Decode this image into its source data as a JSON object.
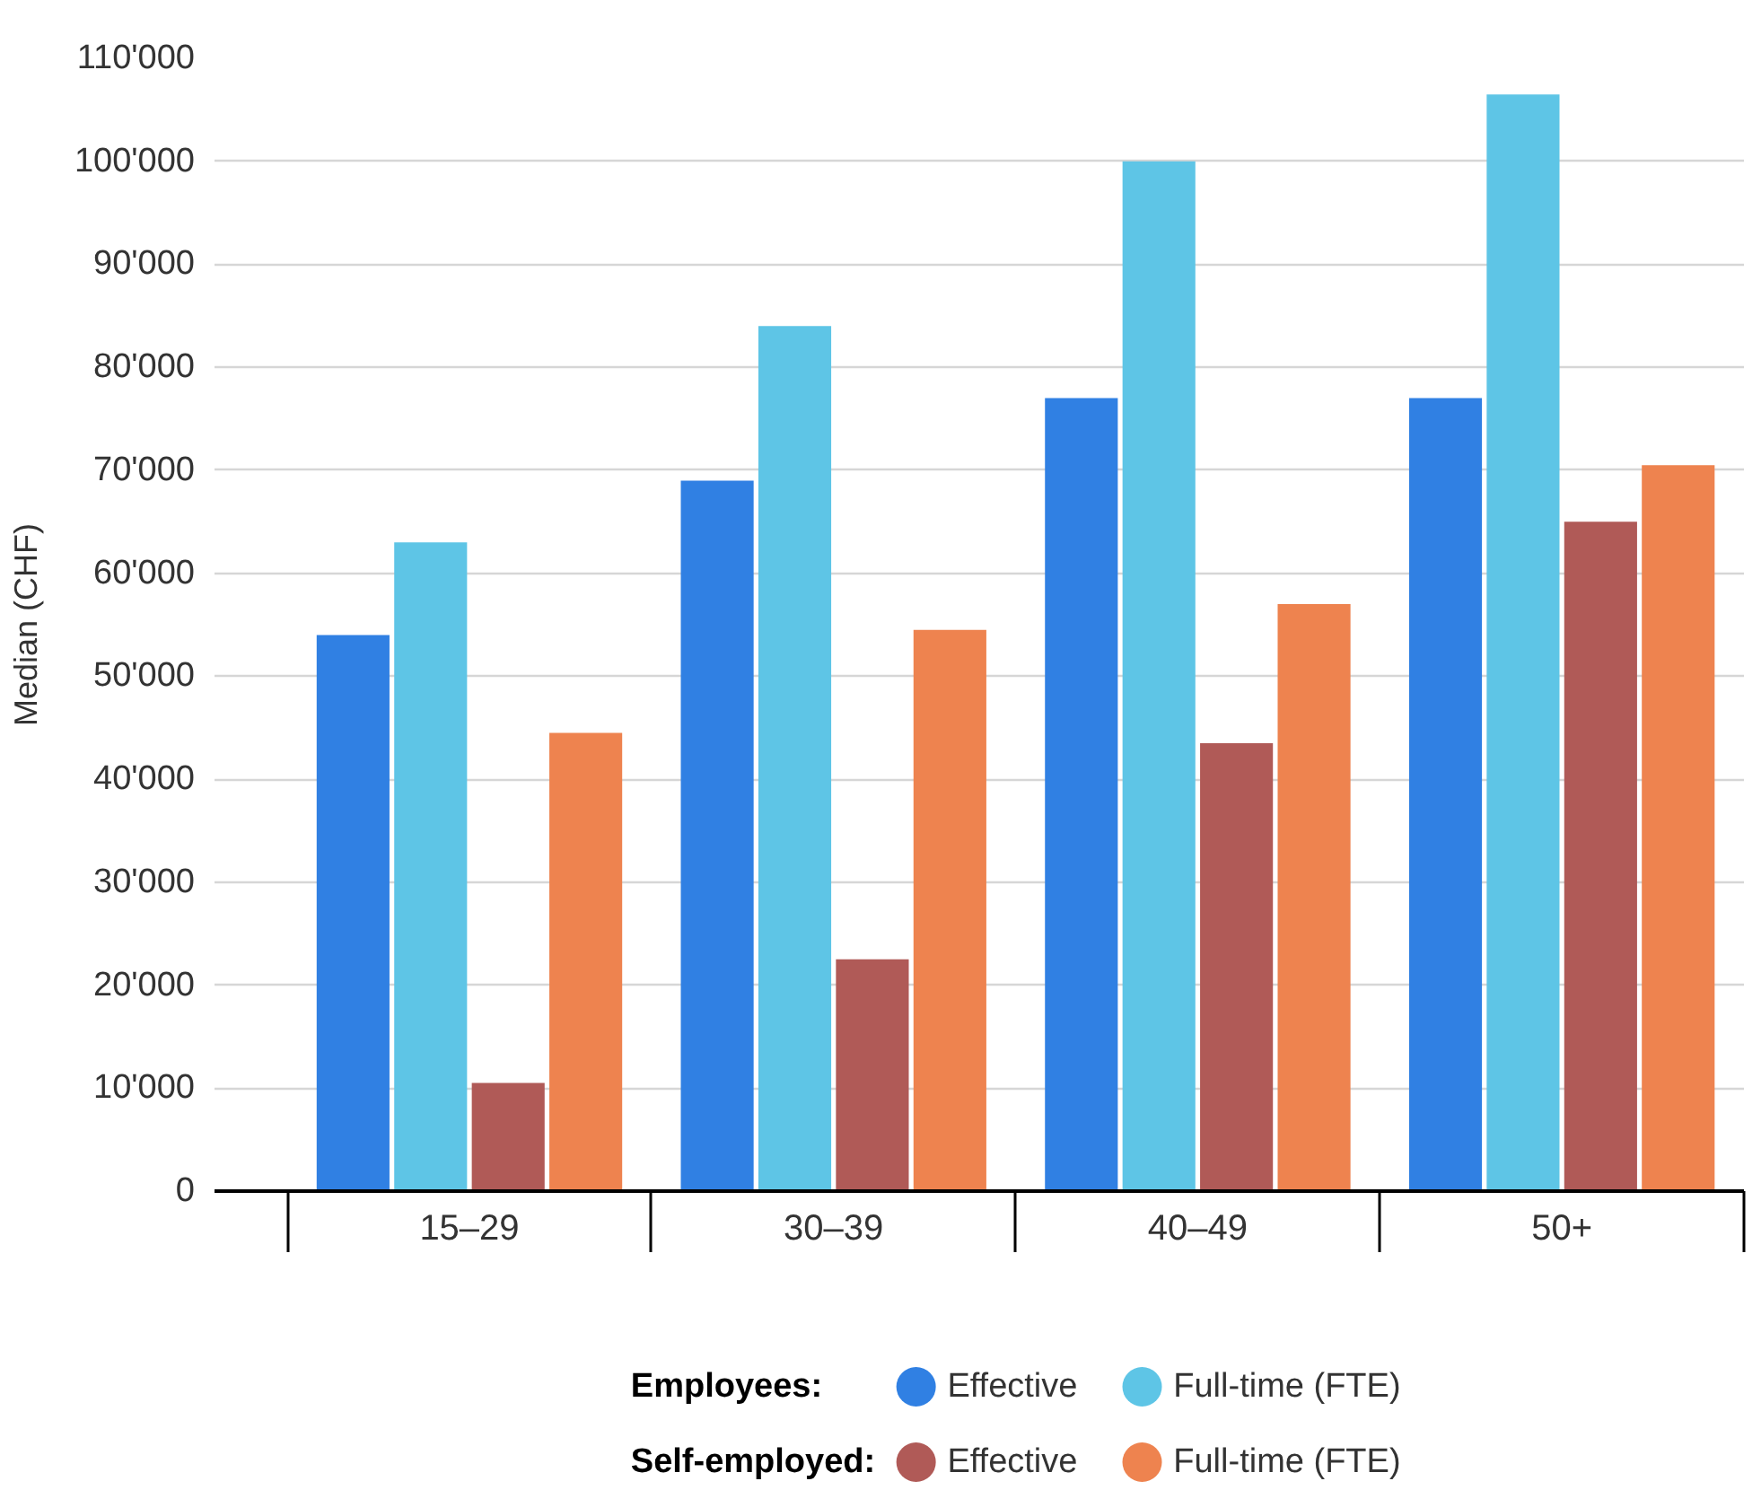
{
  "chart_data": {
    "type": "bar",
    "ylabel": "Median (CHF)",
    "categories": [
      "15–29",
      "30–39",
      "40–49",
      "50+"
    ],
    "series": [
      {
        "name": "Effective",
        "color": "#3080e3",
        "values": [
          54000,
          69000,
          77000,
          77000
        ]
      },
      {
        "name": "Full-time (FTE)",
        "color": "#5ec5e6",
        "values": [
          63000,
          84000,
          100000,
          106500
        ]
      },
      {
        "name": "Effective",
        "color": "#b05a57",
        "values": [
          10500,
          22500,
          43500,
          65000
        ]
      },
      {
        "name": "Full-time (FTE)",
        "color": "#ee834f",
        "values": [
          44500,
          54500,
          57000,
          70500
        ]
      }
    ],
    "annotations": [
      "Employees:",
      "Self-employed:"
    ],
    "ylim": [
      0,
      110000
    ],
    "yticks": [
      {
        "value": 0,
        "label": "0"
      },
      {
        "value": 10000,
        "label": "10'000"
      },
      {
        "value": 20000,
        "label": "20'000"
      },
      {
        "value": 30000,
        "label": "30'000"
      },
      {
        "value": 40000,
        "label": "40'000"
      },
      {
        "value": 50000,
        "label": "50'000"
      },
      {
        "value": 60000,
        "label": "60'000"
      },
      {
        "value": 70000,
        "label": "70'000"
      },
      {
        "value": 80000,
        "label": "80'000"
      },
      {
        "value": 90000,
        "label": "90'000"
      },
      {
        "value": 100000,
        "label": "100'000"
      },
      {
        "value": 110000,
        "label": "110'000"
      }
    ],
    "grid": "y",
    "legend": "bottom"
  }
}
